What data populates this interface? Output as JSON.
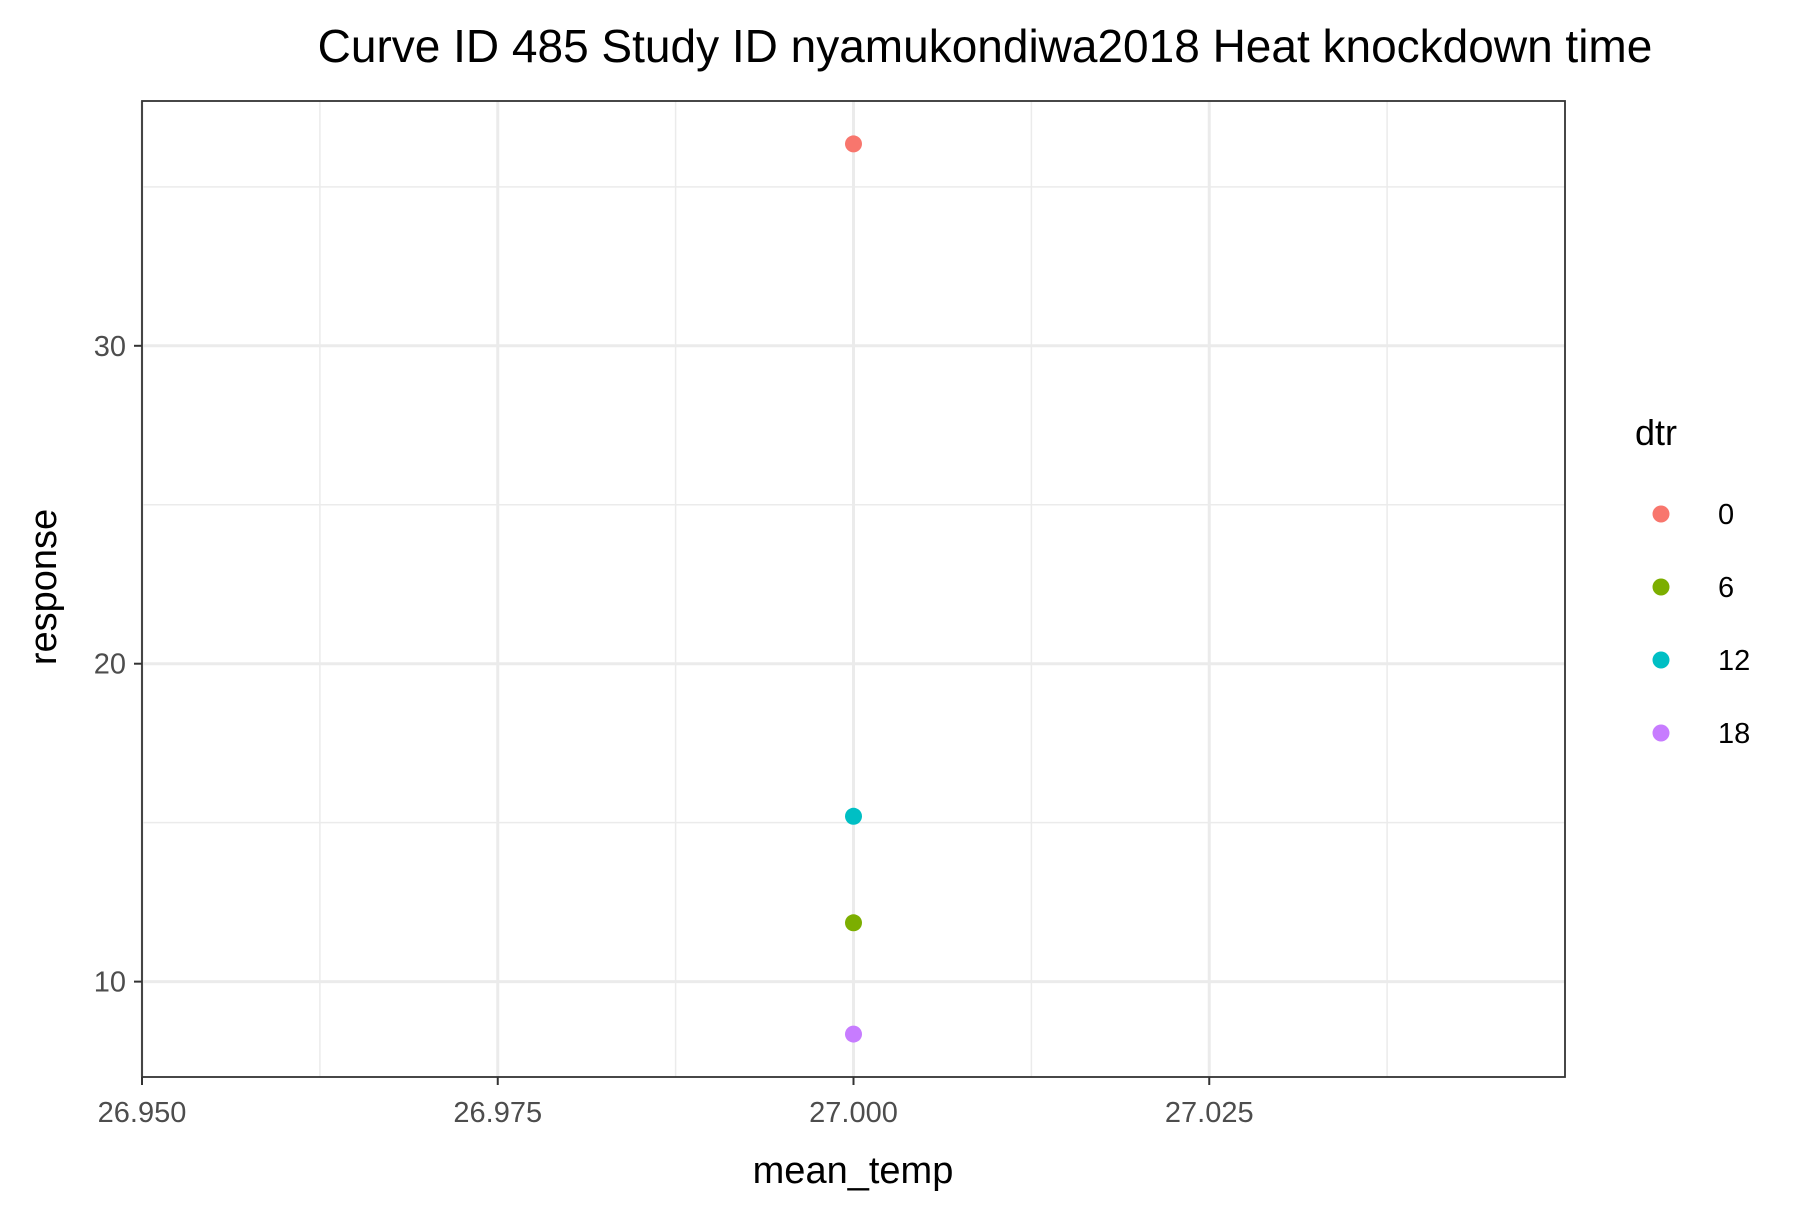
{
  "chart_data": {
    "type": "scatter",
    "title": "Curve ID 485 Study ID nyamukondiwa2018 Heat knockdown time",
    "xlabel": "mean_temp",
    "ylabel": "response",
    "xlim": [
      26.95,
      27.05
    ],
    "ylim": [
      7,
      37.7
    ],
    "x_ticks": [
      26.95,
      26.975,
      27.0,
      27.025
    ],
    "x_tick_labels": [
      "26.950",
      "26.975",
      "27.000",
      "27.025"
    ],
    "y_ticks": [
      10,
      20,
      30
    ],
    "y_tick_labels": [
      "10",
      "20",
      "30"
    ],
    "grid": true,
    "legend": {
      "title": "dtr",
      "placement": "right",
      "entries": [
        "0",
        "6",
        "12",
        "18"
      ]
    },
    "series": [
      {
        "name": "0",
        "color": "#F8766D",
        "x": [
          27.0
        ],
        "y": [
          36.35
        ]
      },
      {
        "name": "6",
        "color": "#7CAE00",
        "x": [
          27.0
        ],
        "y": [
          11.85
        ]
      },
      {
        "name": "12",
        "color": "#00BFC4",
        "x": [
          27.0
        ],
        "y": [
          15.2
        ]
      },
      {
        "name": "18",
        "color": "#C77CFF",
        "x": [
          27.0
        ],
        "y": [
          8.35
        ]
      }
    ]
  }
}
